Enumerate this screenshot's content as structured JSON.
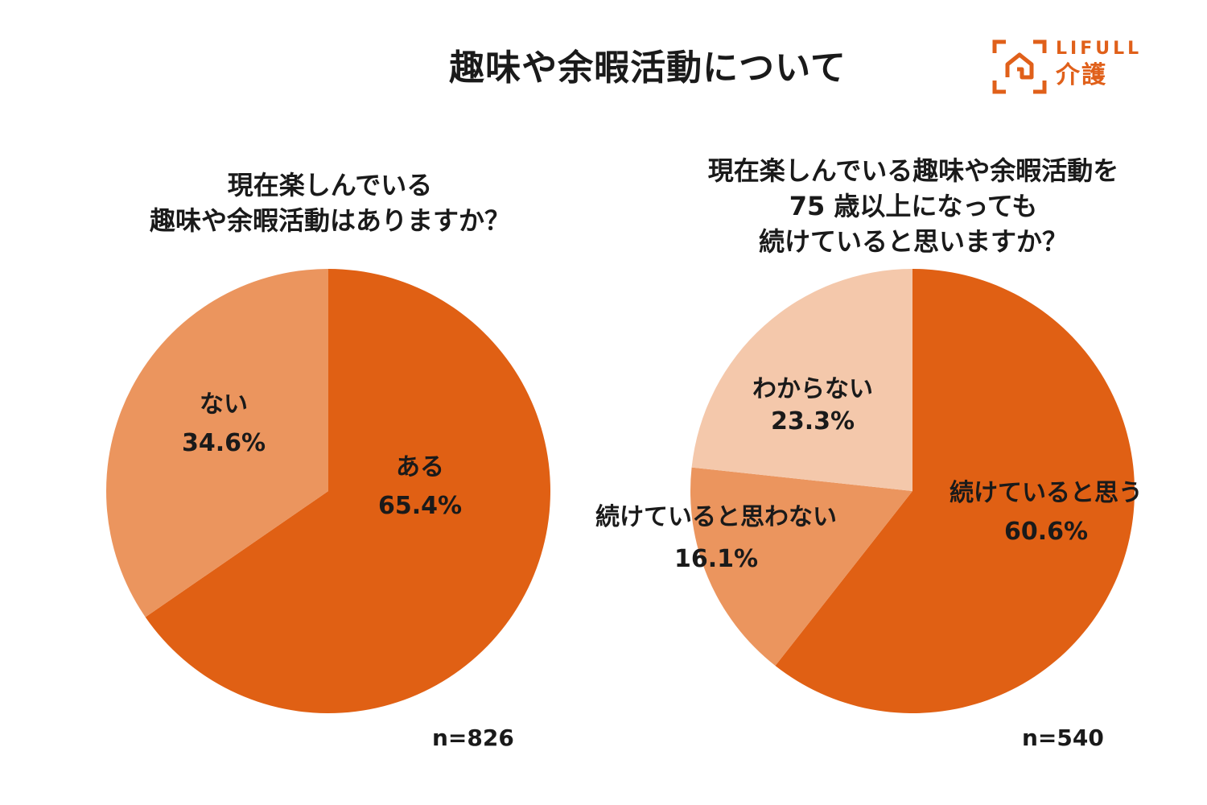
{
  "page": {
    "title": "趣味や余暇活動について"
  },
  "logo": {
    "brand": "LIFULL",
    "service": "介護",
    "accent_color": "#e0601a"
  },
  "chart_data": [
    {
      "type": "pie",
      "title_lines": [
        "現在楽しんでいる",
        "趣味や余暇活動はありますか？"
      ],
      "sample_size": "n=826",
      "slices": [
        {
          "label": "ある",
          "value": 65.4,
          "display": "65.4%",
          "color": "#e06014"
        },
        {
          "label": "ない",
          "value": 34.6,
          "display": "34.6%",
          "color": "#eb955e"
        }
      ]
    },
    {
      "type": "pie",
      "title_lines": [
        "現在楽しんでいる趣味や余暇活動を",
        "75 歳以上になっても",
        "続けていると思いますか？"
      ],
      "sample_size": "n=540",
      "slices": [
        {
          "label": "続けていると思う",
          "value": 60.6,
          "display": "60.6%",
          "color": "#e06014"
        },
        {
          "label": "続けていると思わない",
          "value": 16.1,
          "display": "16.1%",
          "color": "#eb955e"
        },
        {
          "label": "わからない",
          "value": 23.3,
          "display": "23.3%",
          "color": "#f4c8ab"
        }
      ]
    }
  ]
}
